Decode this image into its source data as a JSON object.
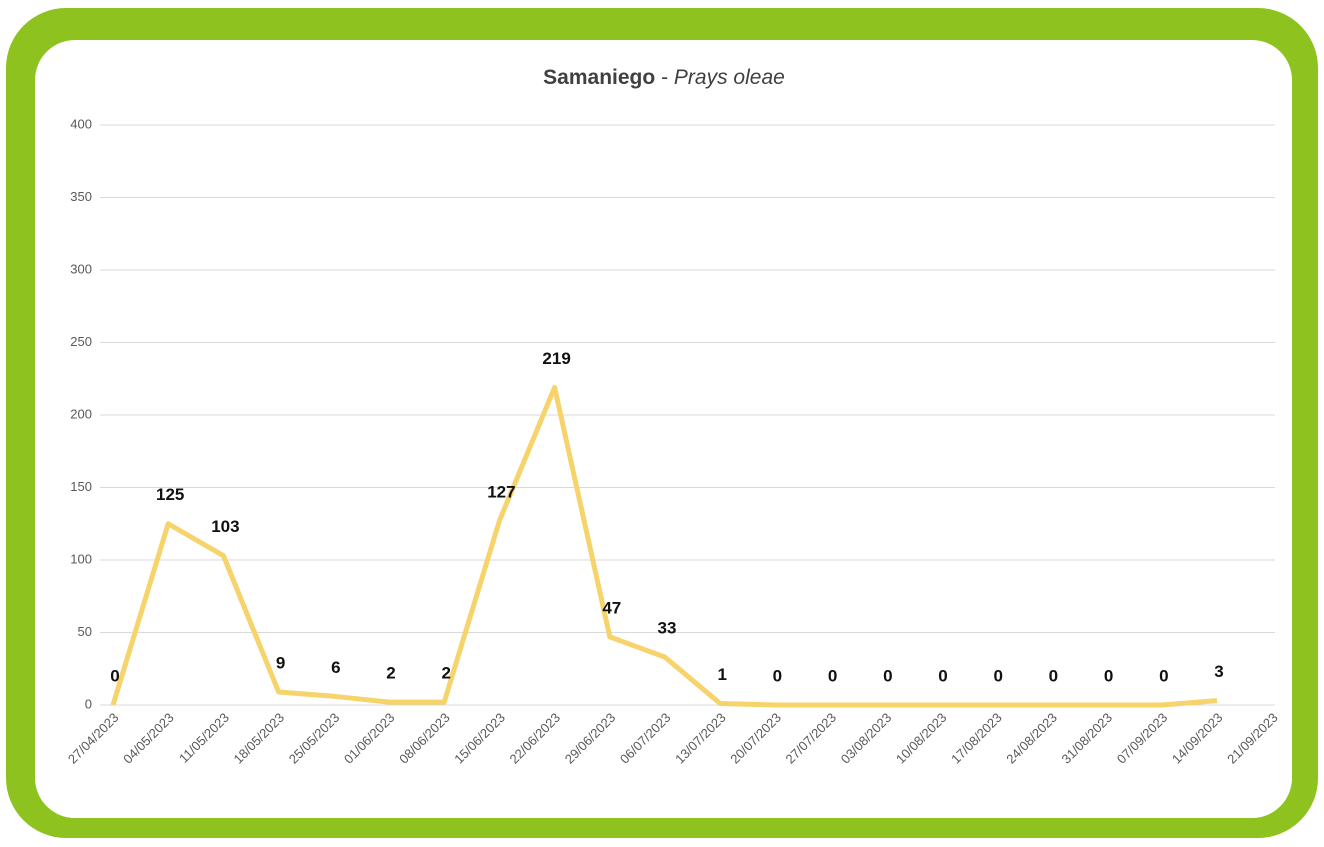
{
  "chart_data": {
    "type": "line",
    "title_parts": [
      "Samaniego",
      "-",
      "Prays oleae"
    ],
    "categories": [
      "27/04/2023",
      "04/05/2023",
      "11/05/2023",
      "18/05/2023",
      "25/05/2023",
      "01/06/2023",
      "08/06/2023",
      "15/06/2023",
      "22/06/2023",
      "29/06/2023",
      "06/07/2023",
      "13/07/2023",
      "20/07/2023",
      "27/07/2023",
      "03/08/2023",
      "10/08/2023",
      "17/08/2023",
      "24/08/2023",
      "31/08/2023",
      "07/09/2023",
      "14/09/2023",
      "21/09/2023"
    ],
    "series": [
      {
        "name": "Prays oleae",
        "color": "#f6d36b",
        "values": [
          0,
          125,
          103,
          9,
          6,
          2,
          2,
          127,
          219,
          47,
          33,
          1,
          0,
          0,
          0,
          0,
          0,
          0,
          0,
          0,
          3,
          null
        ]
      }
    ],
    "ylim": [
      0,
      400
    ],
    "yticks": [
      0,
      50,
      100,
      150,
      200,
      250,
      300,
      350,
      400
    ],
    "grid": true
  }
}
